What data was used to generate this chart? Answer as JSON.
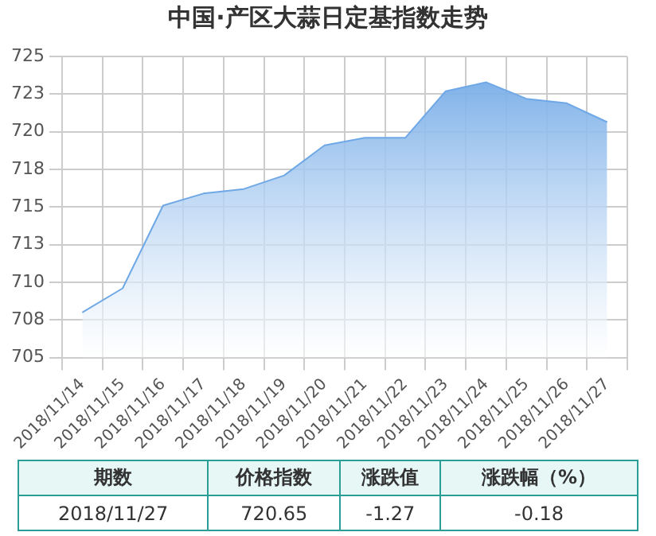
{
  "chart_data": {
    "type": "area",
    "title": "中国·产区大蒜日定基指数走势",
    "categories": [
      "2018/11/14",
      "2018/11/15",
      "2018/11/16",
      "2018/11/17",
      "2018/11/18",
      "2018/11/19",
      "2018/11/20",
      "2018/11/21",
      "2018/11/22",
      "2018/11/23",
      "2018/11/24",
      "2018/11/25",
      "2018/11/26",
      "2018/11/27"
    ],
    "series": [
      {
        "color": "#6fa8e6",
        "values": [
          708.0,
          709.6,
          715.1,
          715.9,
          716.2,
          717.1,
          719.1,
          719.6,
          719.6,
          722.7,
          723.3,
          722.2,
          721.9,
          720.65
        ]
      }
    ],
    "ylim": [
      705,
      725
    ],
    "yticks": [
      705,
      {
        "value": 707.5,
        "label": "708"
      },
      710,
      {
        "value": 712.5,
        "label": "713"
      },
      715,
      {
        "value": 717.5,
        "label": "718"
      },
      720,
      {
        "value": 722.5,
        "label": "723"
      },
      725
    ],
    "grid": true,
    "legend": false,
    "marker": "none",
    "line_style": "solid",
    "annotations": [
      "期数",
      "价格指数",
      "涨跌值",
      "涨跌幅（%）",
      "2018/11/27",
      "720.65",
      "-1.27",
      "-0.18"
    ]
  }
}
